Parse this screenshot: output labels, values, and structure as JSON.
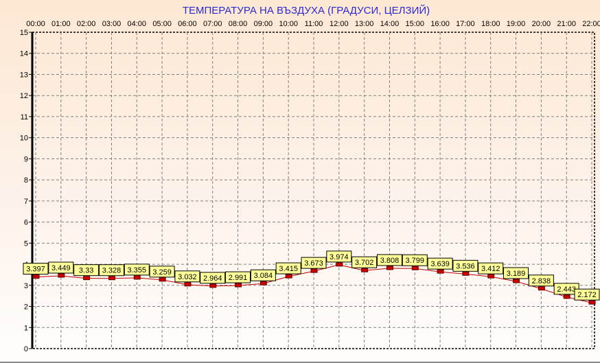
{
  "chart_data": {
    "type": "line",
    "title": "ТЕМПЕРАТУРА НА ВЪЗДУХА  (ГРАДУСИ, ЦЕЛЗИЙ)",
    "categories": [
      "00:00",
      "01:00",
      "02:00",
      "03:00",
      "04:00",
      "05:00",
      "06:00",
      "07:00",
      "08:00",
      "09:00",
      "10:00",
      "11:00",
      "12:00",
      "13:00",
      "14:00",
      "15:00",
      "16:00",
      "17:00",
      "18:00",
      "19:00",
      "20:00",
      "21:00",
      "22:00"
    ],
    "values": [
      3.397,
      3.449,
      3.33,
      3.328,
      3.355,
      3.259,
      3.032,
      2.964,
      2.991,
      3.084,
      3.415,
      3.673,
      3.974,
      3.702,
      3.808,
      3.799,
      3.639,
      3.536,
      3.412,
      3.189,
      2.838,
      2.443,
      2.172
    ],
    "labels": [
      "3.397",
      "3.449",
      "3.33",
      "3.328",
      "3.355",
      "3.259",
      "3.032",
      "2.964",
      "2.991",
      "3.084",
      "3.415",
      "3.673",
      "3.974",
      "3.702",
      "3.808",
      "3.799",
      "3.639",
      "3.536",
      "3.412",
      "3.189",
      "2.838",
      "2.443",
      "2.172"
    ],
    "yticks": [
      "0",
      "1",
      "2",
      "3",
      "4",
      "5",
      "6",
      "7",
      "8",
      "9",
      "10",
      "11",
      "12",
      "13",
      "14",
      "15"
    ],
    "ylim": [
      0,
      15
    ],
    "xaxis_position": "top",
    "grid": true,
    "colors": {
      "title": "#2a2ad0",
      "line": "#c00000",
      "marker": "#cc0000",
      "label_bg": "#ffff99",
      "grid": "#808080"
    }
  }
}
